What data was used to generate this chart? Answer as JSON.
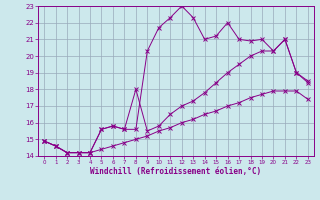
{
  "xlabel": "Windchill (Refroidissement éolien,°C)",
  "xlim": [
    -0.5,
    23.5
  ],
  "ylim": [
    14,
    23
  ],
  "xticks": [
    0,
    1,
    2,
    3,
    4,
    5,
    6,
    7,
    8,
    9,
    10,
    11,
    12,
    13,
    14,
    15,
    16,
    17,
    18,
    19,
    20,
    21,
    22,
    23
  ],
  "yticks": [
    14,
    15,
    16,
    17,
    18,
    19,
    20,
    21,
    22,
    23
  ],
  "bg_color": "#cce8ec",
  "line_color": "#880088",
  "grid_color": "#99aabb",
  "line1_y": [
    14.9,
    14.6,
    14.2,
    14.2,
    14.2,
    14.4,
    14.6,
    14.8,
    15.0,
    15.2,
    15.5,
    15.7,
    16.0,
    16.2,
    16.5,
    16.7,
    17.0,
    17.2,
    17.5,
    17.7,
    17.9,
    17.9,
    17.9,
    17.4
  ],
  "line2_y": [
    14.9,
    14.6,
    14.2,
    14.2,
    14.2,
    15.6,
    15.8,
    15.6,
    18.0,
    15.5,
    15.8,
    16.5,
    17.0,
    17.3,
    17.8,
    18.4,
    19.0,
    19.5,
    20.0,
    20.3,
    20.3,
    21.0,
    19.0,
    18.5
  ],
  "line3_y": [
    14.9,
    14.6,
    14.2,
    14.2,
    14.2,
    15.6,
    15.8,
    15.6,
    15.6,
    20.3,
    21.7,
    22.3,
    23.0,
    22.3,
    21.0,
    21.2,
    22.0,
    21.0,
    20.9,
    21.0,
    20.3,
    21.0,
    19.0,
    18.4
  ]
}
